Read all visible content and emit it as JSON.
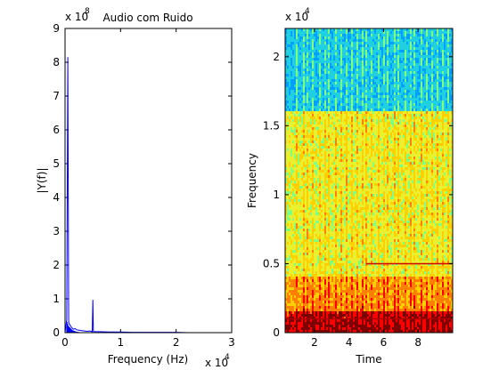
{
  "chart_data": [
    {
      "type": "line",
      "title": "Audio com Ruido",
      "xlabel": "Frequency (Hz)",
      "ylabel": "|Y(f)|",
      "xlim": [
        0,
        30000
      ],
      "ylim": [
        0,
        900000000
      ],
      "x_exponent_label": "x 10",
      "x_exponent_power": "4",
      "y_exponent_label": "x 10",
      "y_exponent_power": "8",
      "xticks": [
        "0",
        "1",
        "2",
        "3"
      ],
      "yticks": [
        "0",
        "1",
        "2",
        "3",
        "4",
        "5",
        "6",
        "7",
        "8",
        "9"
      ],
      "line_color": "#0000ff",
      "series": [
        {
          "points": [
            [
              0,
              0
            ],
            [
              300,
              0.4
            ],
            [
              500,
              8.15
            ],
            [
              650,
              0.3
            ],
            [
              800,
              0.25
            ],
            [
              1000,
              0.2
            ],
            [
              1200,
              0.15
            ],
            [
              1500,
              0.1
            ],
            [
              1800,
              0.12
            ],
            [
              2200,
              0.08
            ],
            [
              2600,
              0.07
            ],
            [
              3000,
              0.06
            ],
            [
              3500,
              0.05
            ],
            [
              4000,
              0.04
            ],
            [
              4500,
              0.05
            ],
            [
              4900,
              0.03
            ],
            [
              5000,
              0.97
            ],
            [
              5100,
              0.03
            ],
            [
              6000,
              0.03
            ],
            [
              8000,
              0.02
            ],
            [
              10000,
              0.02
            ],
            [
              12000,
              0.01
            ],
            [
              15000,
              0.01
            ],
            [
              18000,
              0.01
            ],
            [
              20000,
              0.01
            ],
            [
              22050,
              0.0
            ]
          ],
          "y_scale_note": "values in units of 10^8"
        }
      ]
    },
    {
      "type": "heatmap",
      "xlabel": "Time",
      "ylabel": "Frequency",
      "xlim": [
        0.3,
        10
      ],
      "ylim": [
        0,
        22050
      ],
      "y_exponent_label": "x 10",
      "y_exponent_power": "4",
      "xticks": [
        "2",
        "4",
        "6",
        "8"
      ],
      "xtick_values": [
        2,
        4,
        6,
        8
      ],
      "yticks": [
        "0",
        "0.5",
        "1",
        "1.5",
        "2"
      ],
      "ytick_values": [
        0,
        5000,
        10000,
        15000,
        20000
      ],
      "colormap": [
        "#00007f",
        "#0000ff",
        "#00a0ff",
        "#20d0e0",
        "#80ff80",
        "#e8f030",
        "#ffd000",
        "#ff8000",
        "#ff0000",
        "#7f0000"
      ],
      "bands": [
        {
          "f_low": 16000,
          "f_high": 22050,
          "level": 0.32
        },
        {
          "f_low": 4000,
          "f_high": 16000,
          "level": 0.55
        },
        {
          "f_low": 1500,
          "f_high": 4000,
          "level": 0.68
        },
        {
          "f_low": 0,
          "f_high": 1500,
          "level": 0.82
        }
      ],
      "tone_lines": [
        {
          "freq": 5000,
          "t_start": 5.0,
          "t_end": 10.0,
          "color": "#cc0000"
        },
        {
          "freq": 1000,
          "t_start": 0.3,
          "t_end": 10.0,
          "color": "#aa0000"
        }
      ]
    }
  ]
}
